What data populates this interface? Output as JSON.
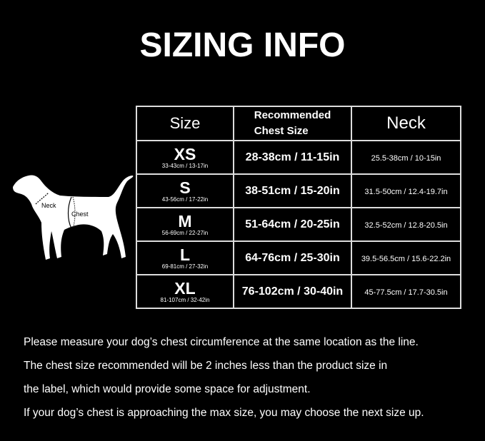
{
  "title": "SIZING INFO",
  "table": {
    "headers": {
      "size": "Size",
      "chest_line1": "Recommended",
      "chest_line2": "Chest Size",
      "neck": "Neck"
    },
    "rows": [
      {
        "size": "XS",
        "size_range": "33-43cm / 13-17in",
        "chest": "28-38cm / 11-15in",
        "neck": "25.5-38cm / 10-15in"
      },
      {
        "size": "S",
        "size_range": "43-56cm / 17-22in",
        "chest": "38-51cm / 15-20in",
        "neck": "31.5-50cm / 12.4-19.7in"
      },
      {
        "size": "M",
        "size_range": "56-69cm / 22-27in",
        "chest": "51-64cm / 20-25in",
        "neck": "32.5-52cm / 12.8-20.5in"
      },
      {
        "size": "L",
        "size_range": "69-81cm / 27-32in",
        "chest": "64-76cm / 25-30in",
        "neck": "39.5-56.5cm / 15.6-22.2in"
      },
      {
        "size": "XL",
        "size_range": "81-107cm / 32-42in",
        "chest": "76-102cm / 30-40in",
        "neck": "45-77.5cm / 17.7-30.5in"
      }
    ]
  },
  "diagram": {
    "neck_label": "Neck",
    "chest_label": "Chest"
  },
  "notes": [
    "Please measure your dog’s chest circumference at the same location as the line.",
    "The chest size recommended will be 2 inches less than the product size in",
    "the label, which would provide some space for adjustment.",
    "If your dog’s chest is approaching the max size, you may choose the next size up."
  ]
}
